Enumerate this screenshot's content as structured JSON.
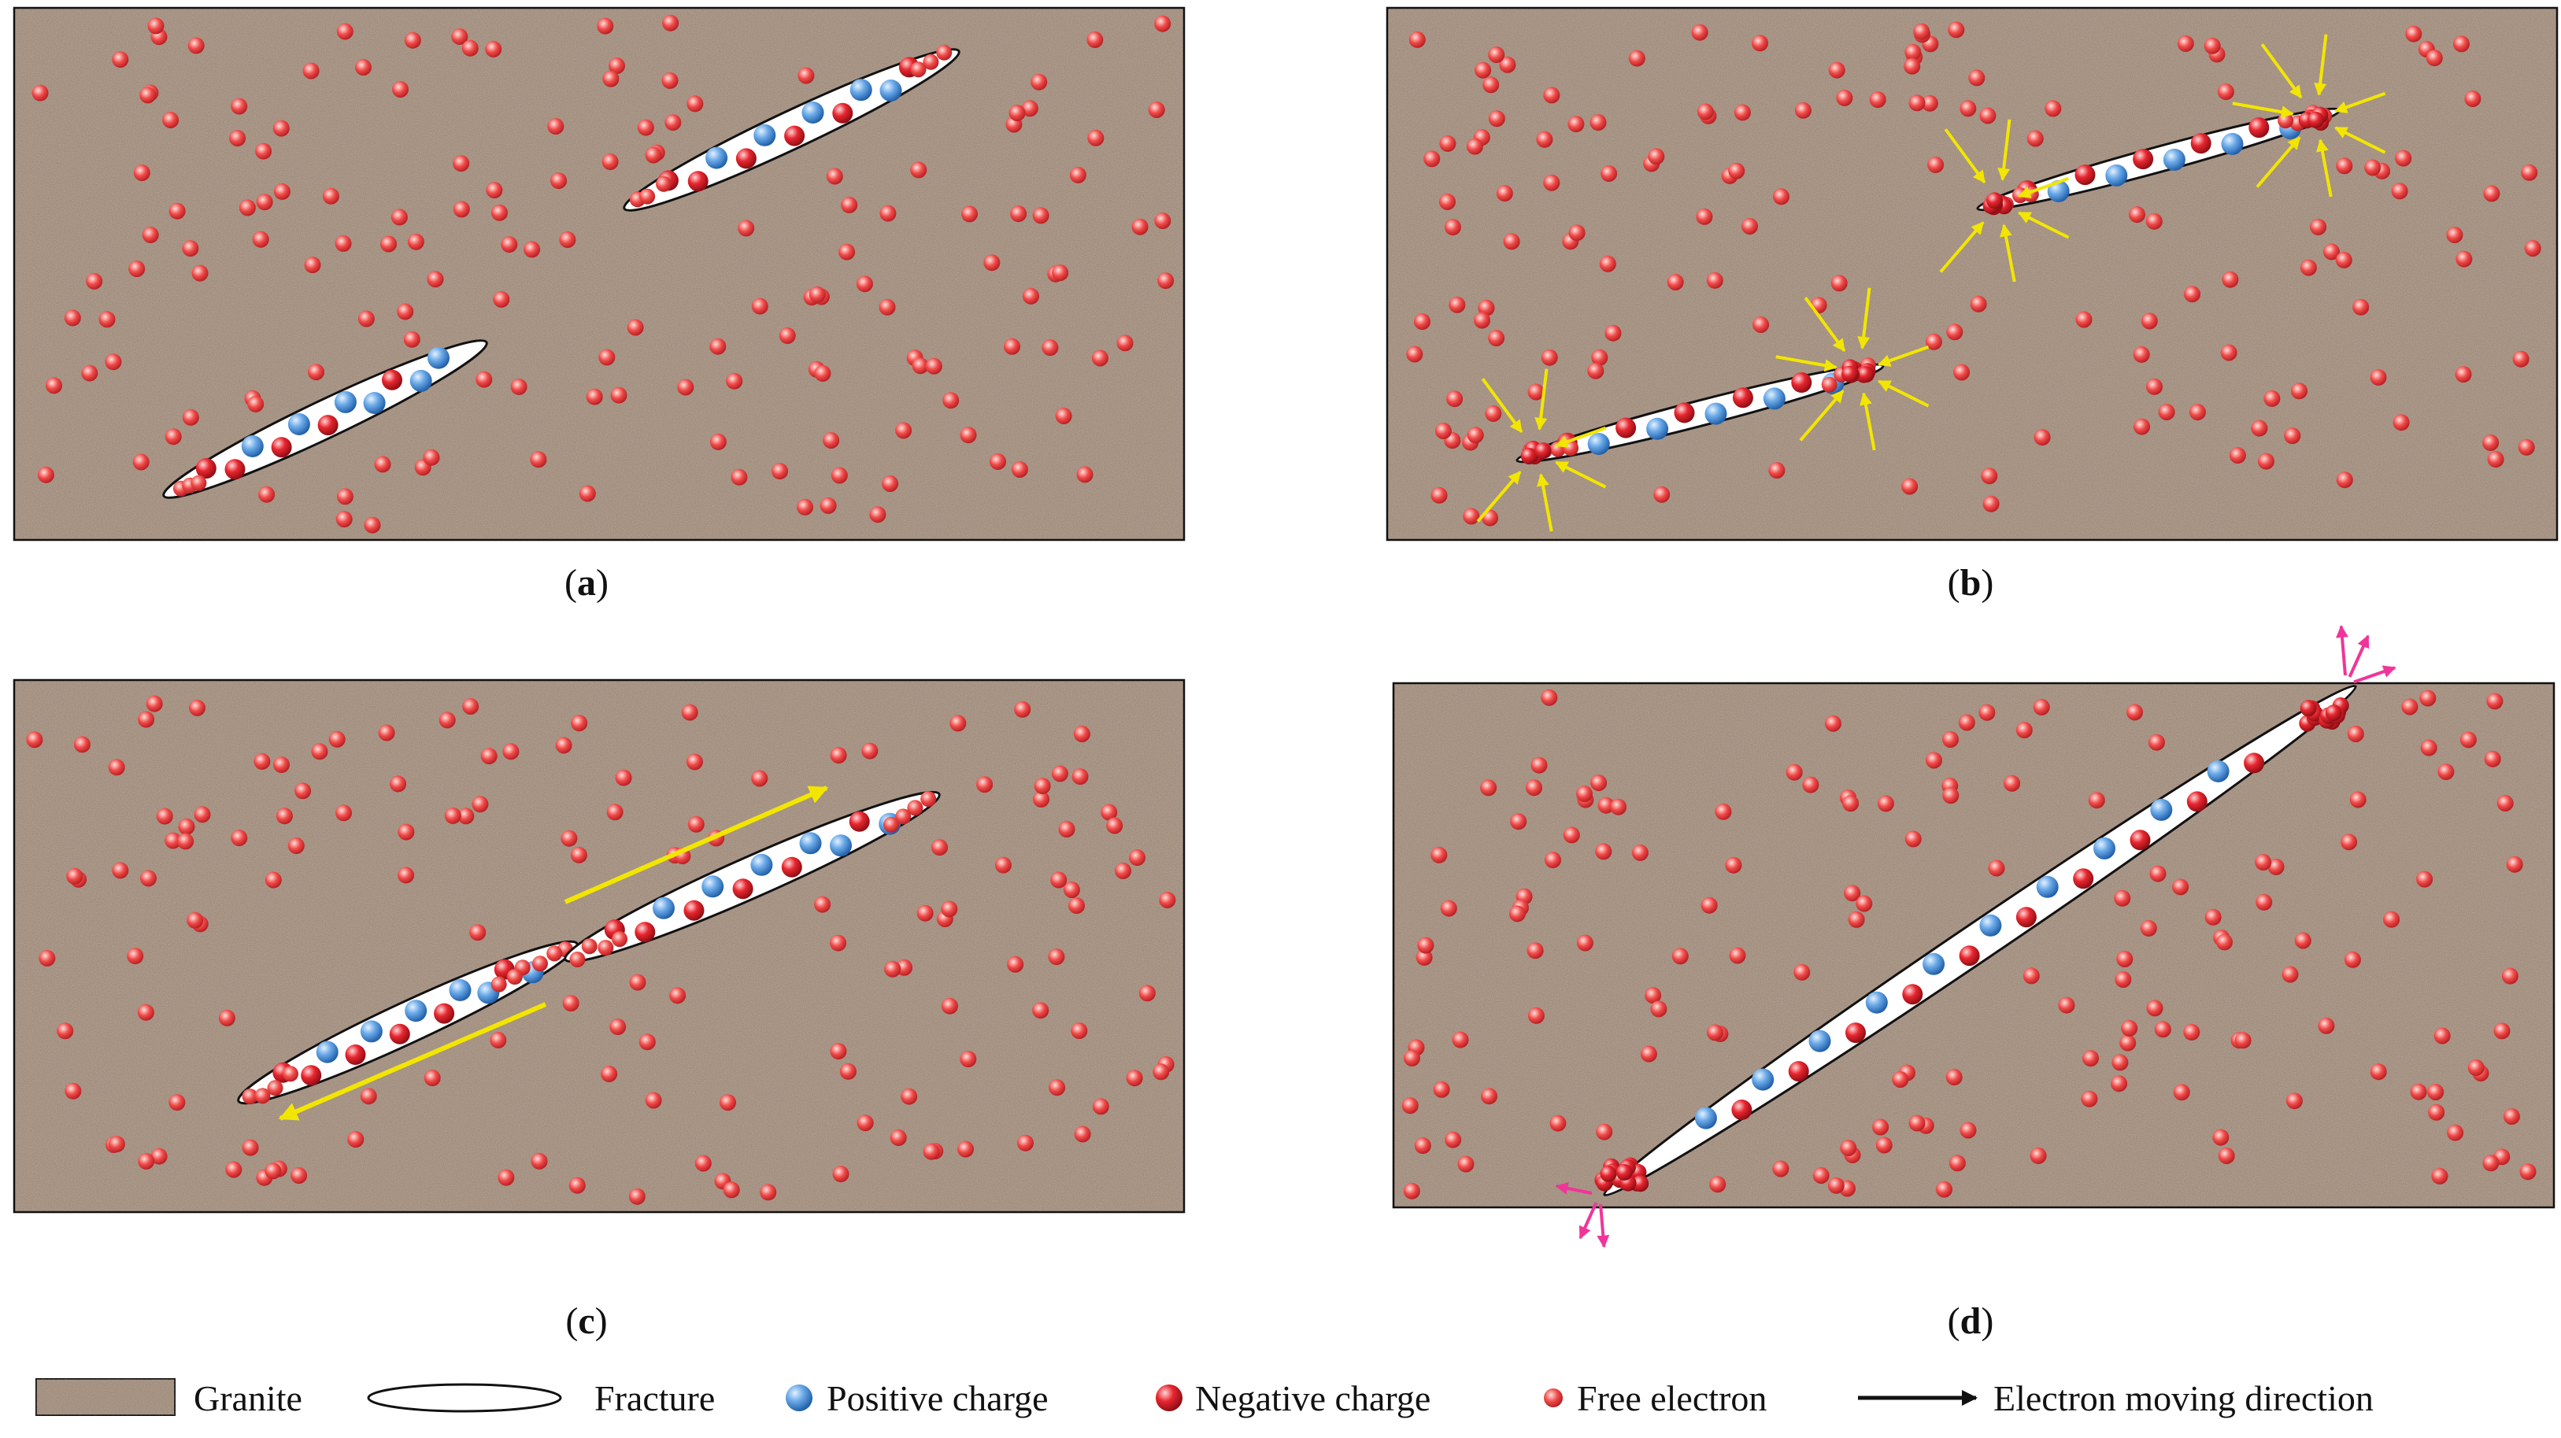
{
  "panels": [
    {
      "id": "a",
      "label": "(a)",
      "letter": "a",
      "stage": "isolated"
    },
    {
      "id": "b",
      "label": "(b)",
      "letter": "b",
      "stage": "attract"
    },
    {
      "id": "c",
      "label": "(c)",
      "letter": "c",
      "stage": "slide"
    },
    {
      "id": "d",
      "label": "(d)",
      "letter": "d",
      "stage": "through"
    }
  ],
  "legend": {
    "granite": "Granite",
    "fracture": "Fracture",
    "positive": "Positive charge",
    "negative": "Negative charge",
    "free": "Free electron",
    "direction": "Electron moving direction"
  },
  "colors": {
    "granite": "#9a8676",
    "granite_dark": "#7c6a5c",
    "granite_light": "#b7a595",
    "positive": "#4a8fd6",
    "negative": "#e0202c",
    "free": "#ee4b4b",
    "yellow_arrow": "#f2e600",
    "magenta_arrow": "#f0359a",
    "outline": "#111111"
  }
}
